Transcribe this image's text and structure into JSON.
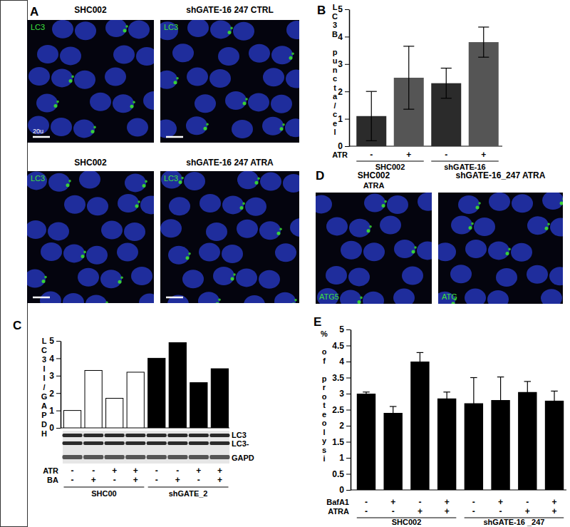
{
  "figure": {
    "panel_labels": [
      "A",
      "B",
      "C",
      "D",
      "E"
    ]
  },
  "images": [
    {
      "title": "SHC002",
      "stain": "LC3",
      "scale_bar": "20u"
    },
    {
      "title": "shGATE-16 247 CTRL",
      "stain": "LC3"
    },
    {
      "title": "SHC002",
      "stain": "LC3"
    },
    {
      "title": "shGATE-16 247 ATRA",
      "stain": "LC3"
    },
    {
      "title": "SHC002",
      "subtitle": "ATRA",
      "stain": "ATG5"
    },
    {
      "title": "shGATE-16_247 ATRA",
      "stain": "ATG"
    }
  ],
  "chart_data": [
    {
      "type": "bar",
      "y_label": "LC3B puncta/cel",
      "values": [
        1.1,
        2.5,
        2.3,
        3.8
      ],
      "errors": [
        0.9,
        1.15,
        0.55,
        0.55
      ],
      "colors": [
        "#2b2b2b",
        "#555555",
        "#2b2b2b",
        "#555555"
      ],
      "ylim": [
        0,
        5
      ],
      "yticks": [
        0,
        1,
        2,
        3,
        4,
        5
      ],
      "conditions": [
        {
          "label": "ATR",
          "values": [
            "-",
            "+",
            "-",
            "+"
          ]
        }
      ],
      "groups": [
        "SHC002",
        "shGATE-16"
      ]
    },
    {
      "type": "bar",
      "y_label": "LC3II/GAPDH",
      "values": [
        1.0,
        3.3,
        1.7,
        3.2,
        4.0,
        4.9,
        2.6,
        3.4
      ],
      "colors": [
        "#ffffff",
        "#ffffff",
        "#ffffff",
        "#ffffff",
        "#000000",
        "#000000",
        "#000000",
        "#000000"
      ],
      "ylim": [
        0,
        5
      ],
      "yticks": [
        0,
        1,
        2,
        3,
        4,
        5
      ],
      "blot_labels": [
        "LC3",
        "LC3-",
        "GAPD"
      ],
      "conditions": [
        {
          "label": "ATR",
          "values": [
            "-",
            "-",
            "+",
            "+",
            "-",
            "-",
            "+",
            "+"
          ]
        },
        {
          "label": "BA",
          "values": [
            "-",
            "+",
            "-",
            "+",
            "-",
            "+",
            "-",
            "+"
          ]
        }
      ],
      "groups": [
        "SHC00",
        "shGATE_2"
      ]
    },
    {
      "type": "bar",
      "y_label": "% of proteolysi",
      "values": [
        3.0,
        2.4,
        4.0,
        2.85,
        2.7,
        2.8,
        3.05,
        2.78
      ],
      "errors": [
        0.05,
        0.2,
        0.28,
        0.2,
        0.8,
        0.72,
        0.33,
        0.3
      ],
      "color": "#000000",
      "ylim": [
        0,
        5
      ],
      "yticks": [
        0,
        0.5,
        1,
        1.5,
        2,
        2.5,
        3,
        3.5,
        4,
        4.5,
        5
      ],
      "conditions": [
        {
          "label": "BafA1",
          "values": [
            "-",
            "+",
            "-",
            "+",
            "-",
            "+",
            "-",
            "+"
          ]
        },
        {
          "label": "ATRA",
          "values": [
            "-",
            "-",
            "+",
            "+",
            "-",
            "-",
            "+",
            "+"
          ]
        }
      ],
      "groups": [
        "SHC002",
        "shGATE-16 _247"
      ]
    }
  ]
}
